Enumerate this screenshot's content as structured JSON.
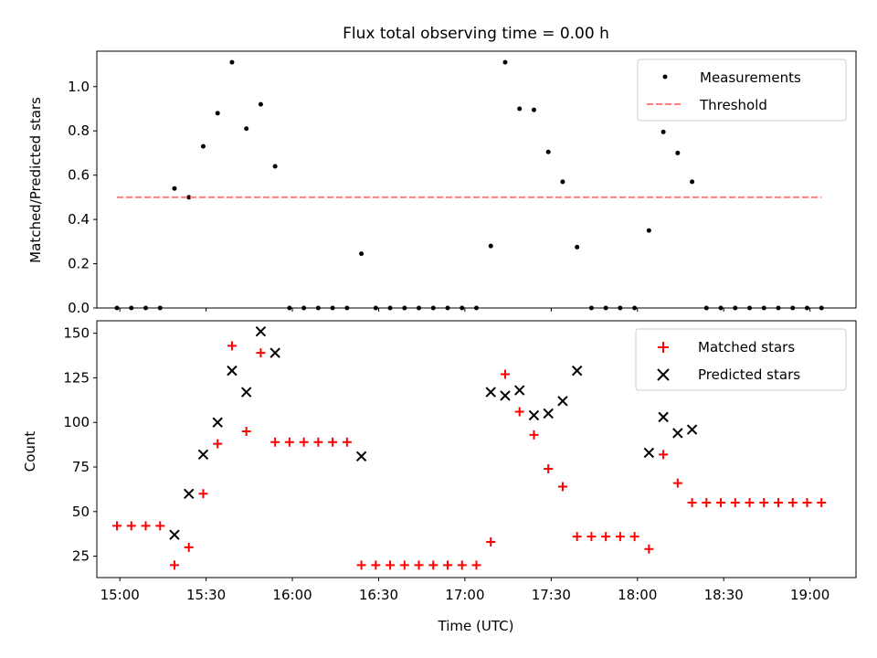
{
  "chart_data": [
    {
      "type": "scatter",
      "title": "Flux total observing time = 0.00 h",
      "ylabel": "Matched/Predicted stars",
      "xlim": [
        "14:52",
        "19:16"
      ],
      "ylim": [
        0,
        1.16
      ],
      "yticks": [
        0.0,
        0.2,
        0.4,
        0.6,
        0.8,
        1.0
      ],
      "ytick_labels": [
        "0.0",
        "0.2",
        "0.4",
        "0.6",
        "0.8",
        "1.0"
      ],
      "xtick_labels_shown": false,
      "legend_position": "upper right",
      "series": [
        {
          "name": "Measurements",
          "marker": "dot",
          "color": "#000000",
          "x": [
            "14:59",
            "15:04",
            "15:09",
            "15:14",
            "15:19",
            "15:24",
            "15:29",
            "15:34",
            "15:39",
            "15:44",
            "15:49",
            "15:54",
            "15:59",
            "16:04",
            "16:09",
            "16:14",
            "16:19",
            "16:24",
            "16:29",
            "16:34",
            "16:39",
            "16:44",
            "16:49",
            "16:54",
            "16:59",
            "17:04",
            "17:09",
            "17:14",
            "17:19",
            "17:24",
            "17:29",
            "17:34",
            "17:39",
            "17:44",
            "17:49",
            "17:54",
            "17:59",
            "18:04",
            "18:09",
            "18:14",
            "18:19",
            "18:24",
            "18:29",
            "18:34",
            "18:39",
            "18:44",
            "18:49",
            "18:54",
            "18:59",
            "19:04"
          ],
          "y": [
            0,
            0,
            0,
            0,
            0.54,
            0.5,
            0.73,
            0.88,
            1.11,
            0.81,
            0.92,
            0.64,
            0,
            0,
            0,
            0,
            0,
            0.245,
            0,
            0,
            0,
            0,
            0,
            0,
            0,
            0,
            0.28,
            1.11,
            0.9,
            0.895,
            0.705,
            0.57,
            0.275,
            0,
            0,
            0,
            0,
            0.35,
            0.795,
            0.7,
            0.57,
            0,
            0,
            0,
            0,
            0,
            0,
            0,
            0,
            0
          ]
        },
        {
          "name": "Threshold",
          "style": "dashed",
          "color": "#ff7f7f",
          "x": [
            "14:59",
            "19:04"
          ],
          "y": [
            0.5,
            0.5
          ]
        }
      ]
    },
    {
      "type": "scatter",
      "ylabel": "Count",
      "xlabel": "Time (UTC)",
      "xlim": [
        "14:52",
        "19:16"
      ],
      "ylim": [
        13,
        157
      ],
      "yticks": [
        25,
        50,
        75,
        100,
        125,
        150
      ],
      "ytick_labels": [
        "25",
        "50",
        "75",
        "100",
        "125",
        "150"
      ],
      "xticks": [
        "15:00",
        "15:30",
        "16:00",
        "16:30",
        "17:00",
        "17:30",
        "18:00",
        "18:30",
        "19:00"
      ],
      "xtick_labels": [
        "15:00",
        "15:30",
        "16:00",
        "16:30",
        "17:00",
        "17:30",
        "18:00",
        "18:30",
        "19:00"
      ],
      "legend_position": "upper right",
      "series": [
        {
          "name": "Matched stars",
          "marker": "plus",
          "color": "#ff0000",
          "x": [
            "14:59",
            "15:04",
            "15:09",
            "15:14",
            "15:19",
            "15:24",
            "15:29",
            "15:34",
            "15:39",
            "15:44",
            "15:49",
            "15:54",
            "15:59",
            "16:04",
            "16:09",
            "16:14",
            "16:19",
            "16:24",
            "16:29",
            "16:34",
            "16:39",
            "16:44",
            "16:49",
            "16:54",
            "16:59",
            "17:04",
            "17:09",
            "17:14",
            "17:19",
            "17:24",
            "17:29",
            "17:34",
            "17:39",
            "17:44",
            "17:49",
            "17:54",
            "17:59",
            "18:04",
            "18:09",
            "18:14",
            "18:19",
            "18:24",
            "18:29",
            "18:34",
            "18:39",
            "18:44",
            "18:49",
            "18:54",
            "18:59",
            "19:04"
          ],
          "y": [
            42,
            42,
            42,
            42,
            20,
            30,
            60,
            88,
            143,
            95,
            139,
            89,
            89,
            89,
            89,
            89,
            89,
            20,
            20,
            20,
            20,
            20,
            20,
            20,
            20,
            20,
            33,
            127,
            106,
            93,
            74,
            64,
            36,
            36,
            36,
            36,
            36,
            29,
            82,
            66,
            55,
            55,
            55,
            55,
            55,
            55,
            55,
            55,
            55,
            55
          ]
        },
        {
          "name": "Predicted stars",
          "marker": "x",
          "color": "#000000",
          "x": [
            "15:19",
            "15:24",
            "15:29",
            "15:34",
            "15:39",
            "15:44",
            "15:49",
            "15:54",
            "16:24",
            "17:09",
            "17:14",
            "17:19",
            "17:24",
            "17:29",
            "17:34",
            "17:39",
            "18:04",
            "18:09",
            "18:14",
            "18:19"
          ],
          "y": [
            37,
            60,
            82,
            100,
            129,
            117,
            151,
            139,
            81,
            117,
            115,
            118,
            104,
            105,
            112,
            129,
            83,
            103,
            94,
            96
          ]
        }
      ]
    }
  ]
}
